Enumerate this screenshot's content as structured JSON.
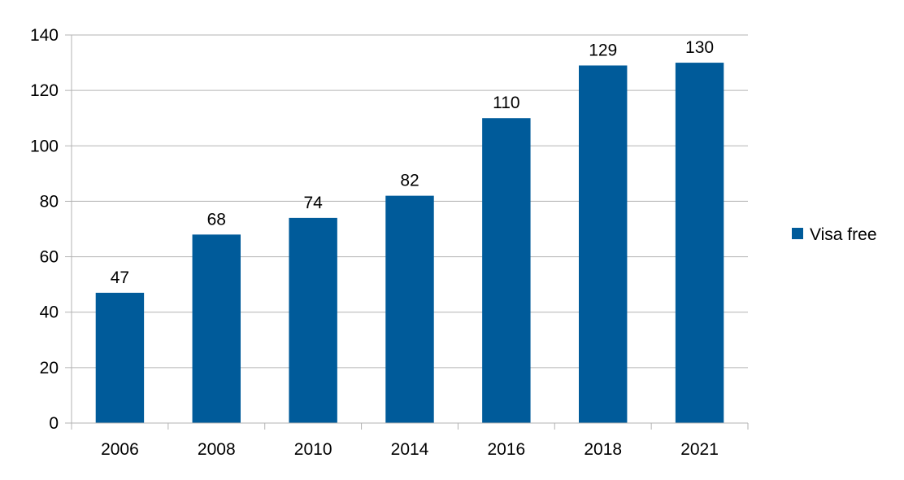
{
  "chart_data": {
    "type": "bar",
    "categories": [
      "2006",
      "2008",
      "2010",
      "2014",
      "2016",
      "2018",
      "2021"
    ],
    "series": [
      {
        "name": "Visa free",
        "values": [
          47,
          68,
          74,
          82,
          110,
          129,
          130
        ]
      }
    ],
    "ylim": [
      0,
      140
    ],
    "yticks": [
      0,
      20,
      40,
      60,
      80,
      100,
      120,
      140
    ],
    "grid": true,
    "legend_position": "right",
    "data_labels": true,
    "colors": {
      "bar": "#005b9a",
      "grid": "#b3b3b3",
      "axis": "#b3b3b3"
    }
  }
}
